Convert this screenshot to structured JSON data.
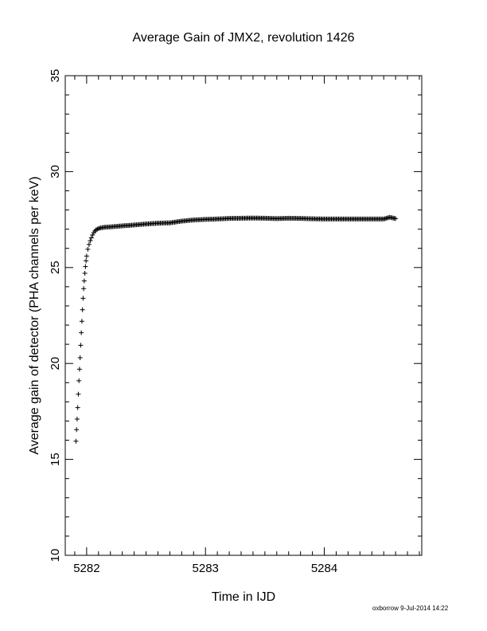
{
  "chart_data": {
    "type": "scatter",
    "title": "Average Gain of JMX2, revolution 1426",
    "xlabel": "Time in IJD",
    "ylabel": "Average gain of detector (PHA channels per keV)",
    "xlim": [
      5281.82,
      5284.82
    ],
    "ylim": [
      10,
      35
    ],
    "xticks": [
      "5282",
      "5283",
      "5284"
    ],
    "yticks": [
      "10",
      "15",
      "20",
      "25",
      "30",
      "35"
    ],
    "grid": false,
    "legend": "none",
    "marker": "plus",
    "color": "#000000",
    "points": [
      [
        5281.91,
        15.95
      ],
      [
        5281.915,
        16.55
      ],
      [
        5281.92,
        17.1
      ],
      [
        5281.925,
        17.7
      ],
      [
        5281.93,
        18.4
      ],
      [
        5281.935,
        19.1
      ],
      [
        5281.94,
        19.7
      ],
      [
        5281.945,
        20.3
      ],
      [
        5281.95,
        20.95
      ],
      [
        5281.955,
        21.6
      ],
      [
        5281.96,
        22.2
      ],
      [
        5281.965,
        22.8
      ],
      [
        5281.97,
        23.4
      ],
      [
        5281.975,
        23.9
      ],
      [
        5281.98,
        24.3
      ],
      [
        5281.985,
        24.7
      ],
      [
        5281.99,
        25.05
      ],
      [
        5281.995,
        25.35
      ],
      [
        5282.0,
        25.6
      ],
      [
        5282.01,
        25.95
      ],
      [
        5282.02,
        26.2
      ],
      [
        5282.03,
        26.4
      ],
      [
        5282.04,
        26.55
      ],
      [
        5282.05,
        26.7
      ],
      [
        5282.06,
        26.82
      ],
      [
        5282.07,
        26.9
      ],
      [
        5282.08,
        26.97
      ],
      [
        5282.1,
        27.03
      ],
      [
        5282.12,
        27.07
      ],
      [
        5282.15,
        27.1
      ],
      [
        5282.2,
        27.12
      ],
      [
        5282.3,
        27.17
      ],
      [
        5282.4,
        27.22
      ],
      [
        5282.5,
        27.27
      ],
      [
        5282.6,
        27.31
      ],
      [
        5282.7,
        27.33
      ],
      [
        5282.8,
        27.42
      ],
      [
        5282.9,
        27.48
      ],
      [
        5283.0,
        27.51
      ],
      [
        5283.1,
        27.53
      ],
      [
        5283.2,
        27.56
      ],
      [
        5283.3,
        27.57
      ],
      [
        5283.4,
        27.58
      ],
      [
        5283.5,
        27.57
      ],
      [
        5283.6,
        27.55
      ],
      [
        5283.7,
        27.57
      ],
      [
        5283.8,
        27.56
      ],
      [
        5283.9,
        27.54
      ],
      [
        5284.0,
        27.53
      ],
      [
        5284.1,
        27.53
      ],
      [
        5284.2,
        27.53
      ],
      [
        5284.3,
        27.53
      ],
      [
        5284.4,
        27.53
      ],
      [
        5284.5,
        27.53
      ],
      [
        5284.55,
        27.62
      ],
      [
        5284.6,
        27.55
      ]
    ]
  },
  "footer": {
    "credit": "oxborrow  9-Jul-2014 14:22"
  }
}
